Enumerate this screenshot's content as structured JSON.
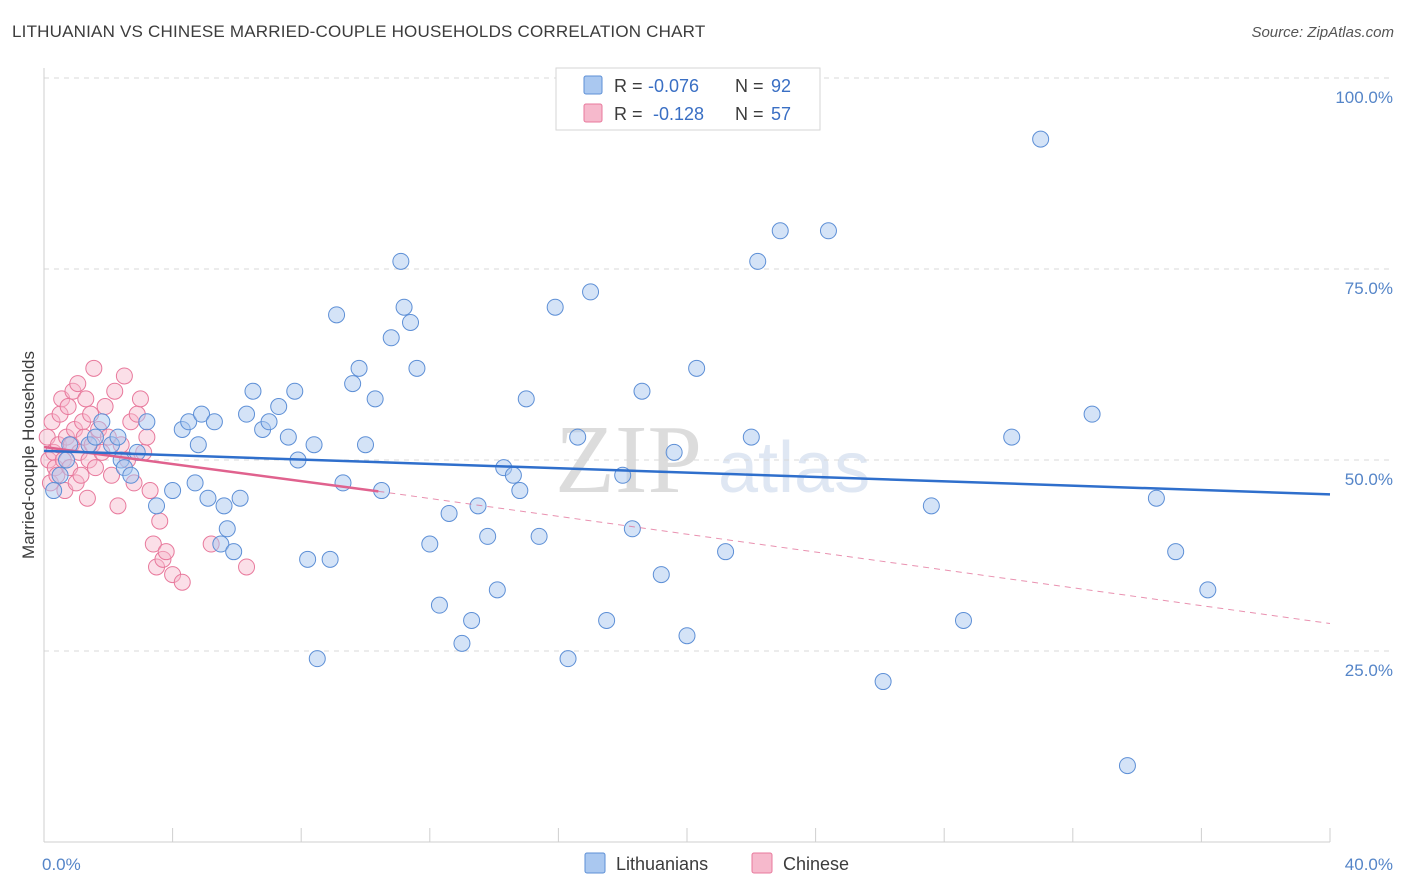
{
  "title": "LITHUANIAN VS CHINESE MARRIED-COUPLE HOUSEHOLDS CORRELATION CHART",
  "source": "Source: ZipAtlas.com",
  "watermark": {
    "zip": "ZIP",
    "atlas": "atlas"
  },
  "colors": {
    "lithuanians_fill": "#aac8f0",
    "lithuanians_stroke": "#5d8fd6",
    "lithuanians_line": "#2f6fcc",
    "chinese_fill": "#f6b9cc",
    "chinese_stroke": "#e8799c",
    "chinese_line": "#e0628e",
    "grid": "#d8d8d8",
    "tick_text": "#5585c8"
  },
  "legend": {
    "rows": [
      {
        "r_label": "R = ",
        "r_value": "-0.076",
        "n_label": "N = ",
        "n_value": "92"
      },
      {
        "r_label": "R = ",
        "r_value": " -0.128",
        "n_label": "N = ",
        "n_value": "57"
      }
    ]
  },
  "bottom_legend": [
    "Lithuanians",
    "Chinese"
  ],
  "chart_data": {
    "type": "scatter",
    "title": "LITHUANIAN VS CHINESE MARRIED-COUPLE HOUSEHOLDS CORRELATION CHART",
    "xlabel": "",
    "ylabel": "Married-couple Households",
    "xlim": [
      0,
      40
    ],
    "ylim": [
      0,
      100
    ],
    "x_tick_labels": [
      "0.0%",
      "40.0%"
    ],
    "y_ticks": [
      25,
      50,
      75,
      100
    ],
    "y_tick_labels": [
      "25.0%",
      "50.0%",
      "75.0%",
      "100.0%"
    ],
    "series": [
      {
        "name": "Lithuanians",
        "r": -0.076,
        "n": 92,
        "trend": {
          "x": [
            0,
            40
          ],
          "y": [
            51.2,
            45.5
          ]
        },
        "points": [
          [
            0.3,
            46
          ],
          [
            0.5,
            48
          ],
          [
            0.7,
            50
          ],
          [
            0.8,
            52
          ],
          [
            1.4,
            52
          ],
          [
            1.6,
            53
          ],
          [
            1.8,
            55
          ],
          [
            2.1,
            52
          ],
          [
            2.3,
            53
          ],
          [
            2.4,
            50
          ],
          [
            2.5,
            49
          ],
          [
            2.7,
            48
          ],
          [
            2.9,
            51
          ],
          [
            3.2,
            55
          ],
          [
            3.5,
            44
          ],
          [
            4.0,
            46
          ],
          [
            4.3,
            54
          ],
          [
            4.5,
            55
          ],
          [
            4.7,
            47
          ],
          [
            4.8,
            52
          ],
          [
            4.9,
            56
          ],
          [
            5.1,
            45
          ],
          [
            5.3,
            55
          ],
          [
            5.5,
            39
          ],
          [
            5.6,
            44
          ],
          [
            5.7,
            41
          ],
          [
            5.9,
            38
          ],
          [
            6.1,
            45
          ],
          [
            6.3,
            56
          ],
          [
            6.5,
            59
          ],
          [
            6.8,
            54
          ],
          [
            7.0,
            55
          ],
          [
            7.3,
            57
          ],
          [
            7.6,
            53
          ],
          [
            7.8,
            59
          ],
          [
            7.9,
            50
          ],
          [
            8.2,
            37
          ],
          [
            8.4,
            52
          ],
          [
            8.5,
            24
          ],
          [
            8.9,
            37
          ],
          [
            9.1,
            69
          ],
          [
            9.3,
            47
          ],
          [
            9.6,
            60
          ],
          [
            9.8,
            62
          ],
          [
            10.0,
            52
          ],
          [
            10.3,
            58
          ],
          [
            10.5,
            46
          ],
          [
            10.8,
            66
          ],
          [
            11.1,
            76
          ],
          [
            11.2,
            70
          ],
          [
            11.4,
            68
          ],
          [
            11.6,
            62
          ],
          [
            12.0,
            39
          ],
          [
            12.3,
            31
          ],
          [
            12.6,
            43
          ],
          [
            13.0,
            26
          ],
          [
            13.3,
            29
          ],
          [
            13.5,
            44
          ],
          [
            13.8,
            40
          ],
          [
            14.1,
            33
          ],
          [
            14.3,
            49
          ],
          [
            14.6,
            48
          ],
          [
            14.8,
            46
          ],
          [
            15.0,
            58
          ],
          [
            15.4,
            40
          ],
          [
            15.9,
            70
          ],
          [
            16.3,
            24
          ],
          [
            16.6,
            53
          ],
          [
            17.0,
            72
          ],
          [
            17.5,
            29
          ],
          [
            18.0,
            48
          ],
          [
            18.3,
            41
          ],
          [
            18.6,
            59
          ],
          [
            19.2,
            35
          ],
          [
            19.6,
            51
          ],
          [
            20.0,
            27
          ],
          [
            20.3,
            62
          ],
          [
            21.2,
            38
          ],
          [
            22.0,
            53
          ],
          [
            22.2,
            76
          ],
          [
            22.9,
            80
          ],
          [
            24.4,
            80
          ],
          [
            26.1,
            21
          ],
          [
            27.6,
            44
          ],
          [
            28.6,
            29
          ],
          [
            30.1,
            53
          ],
          [
            31.0,
            92
          ],
          [
            32.6,
            56
          ],
          [
            33.7,
            10
          ],
          [
            34.6,
            45
          ],
          [
            35.2,
            38
          ],
          [
            36.2,
            33
          ]
        ]
      },
      {
        "name": "Chinese",
        "r": -0.128,
        "n": 57,
        "trend": {
          "x": [
            0,
            10.4
          ],
          "y": [
            51.7,
            45.9
          ]
        },
        "trend_dashed": {
          "x": [
            10.4,
            40
          ],
          "y": [
            45.9,
            28.6
          ]
        },
        "points": [
          [
            0.1,
            53
          ],
          [
            0.15,
            50
          ],
          [
            0.2,
            47
          ],
          [
            0.25,
            55
          ],
          [
            0.3,
            51
          ],
          [
            0.35,
            49
          ],
          [
            0.4,
            48
          ],
          [
            0.45,
            52
          ],
          [
            0.5,
            56
          ],
          [
            0.55,
            58
          ],
          [
            0.6,
            50
          ],
          [
            0.65,
            46
          ],
          [
            0.7,
            53
          ],
          [
            0.75,
            57
          ],
          [
            0.8,
            49
          ],
          [
            0.85,
            52
          ],
          [
            0.9,
            59
          ],
          [
            0.95,
            54
          ],
          [
            1.0,
            47
          ],
          [
            1.05,
            60
          ],
          [
            1.1,
            51
          ],
          [
            1.15,
            48
          ],
          [
            1.2,
            55
          ],
          [
            1.25,
            53
          ],
          [
            1.3,
            58
          ],
          [
            1.35,
            45
          ],
          [
            1.4,
            50
          ],
          [
            1.45,
            56
          ],
          [
            1.5,
            52
          ],
          [
            1.55,
            62
          ],
          [
            1.6,
            49
          ],
          [
            1.7,
            54
          ],
          [
            1.8,
            51
          ],
          [
            1.9,
            57
          ],
          [
            2.0,
            53
          ],
          [
            2.1,
            48
          ],
          [
            2.2,
            59
          ],
          [
            2.3,
            44
          ],
          [
            2.4,
            52
          ],
          [
            2.5,
            61
          ],
          [
            2.6,
            50
          ],
          [
            2.7,
            55
          ],
          [
            2.8,
            47
          ],
          [
            2.9,
            56
          ],
          [
            3.0,
            58
          ],
          [
            3.1,
            51
          ],
          [
            3.2,
            53
          ],
          [
            3.3,
            46
          ],
          [
            3.4,
            39
          ],
          [
            3.5,
            36
          ],
          [
            3.6,
            42
          ],
          [
            3.7,
            37
          ],
          [
            3.8,
            38
          ],
          [
            4.0,
            35
          ],
          [
            4.3,
            34
          ],
          [
            5.2,
            39
          ],
          [
            6.3,
            36
          ]
        ]
      }
    ]
  }
}
